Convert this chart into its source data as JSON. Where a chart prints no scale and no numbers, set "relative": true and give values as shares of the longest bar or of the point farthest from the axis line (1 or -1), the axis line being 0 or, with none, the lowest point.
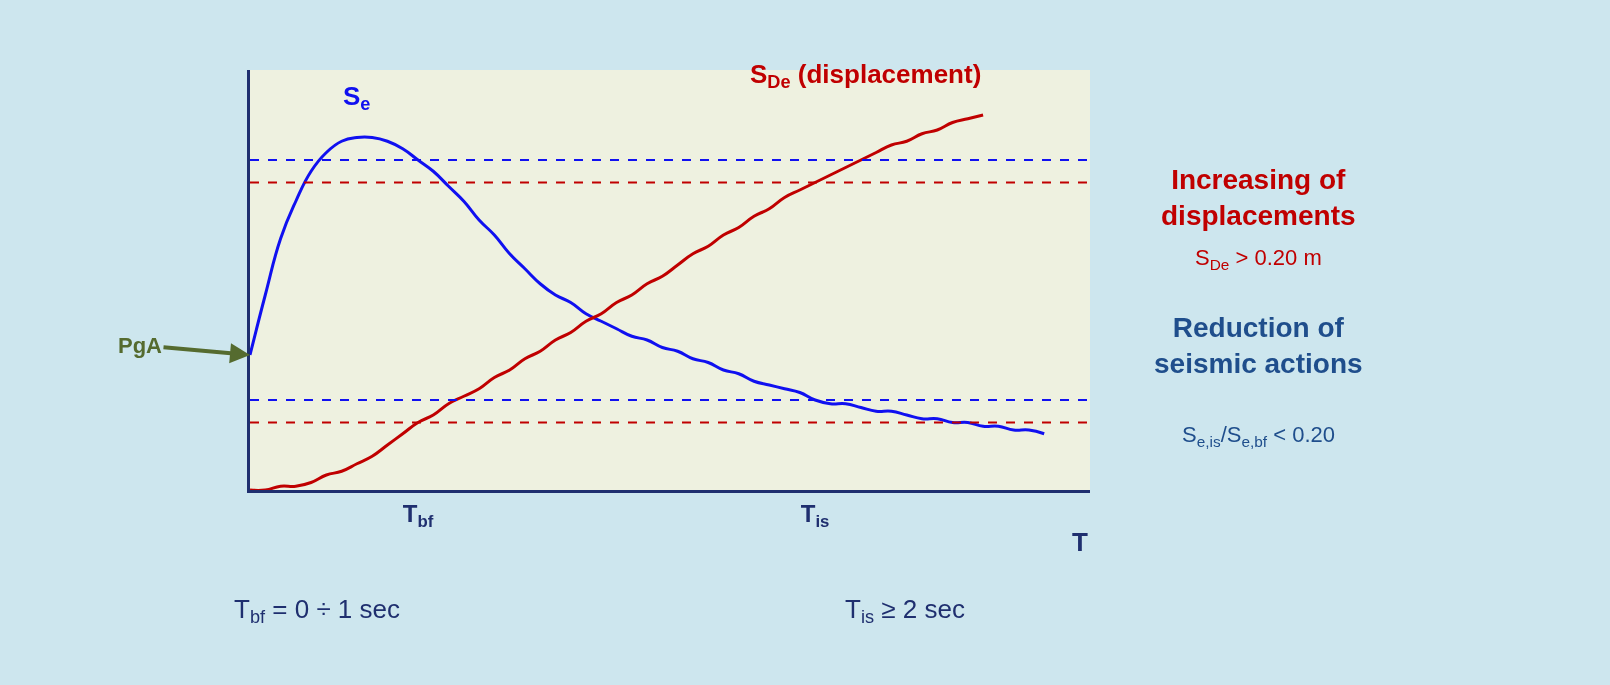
{
  "chart_data": {
    "type": "line",
    "relative": true,
    "xlabel": "T",
    "legend": false,
    "grid": false,
    "categories": [
      null,
      null,
      null,
      null,
      null,
      null,
      null,
      null,
      null,
      null,
      null,
      "T$_{bf}$",
      null,
      null,
      null,
      null,
      null,
      null,
      null,
      null,
      null,
      null,
      null,
      null,
      null,
      null,
      null,
      null,
      null,
      null,
      null,
      null,
      null,
      null,
      null,
      null,
      null,
      "T$_{is}$",
      null,
      null,
      null,
      null,
      null,
      null,
      null,
      null,
      null,
      null,
      null,
      null,
      null,
      null,
      null,
      null,
      null,
      null
    ],
    "series": [
      {
        "name": "S$_{e}$",
        "color": "#1010f0",
        "values": [
          0.36,
          0.52,
          0.67,
          0.77,
          0.85,
          0.9,
          0.93,
          0.94,
          0.94,
          0.93,
          0.91,
          0.88,
          0.85,
          0.81,
          0.77,
          0.72,
          0.68,
          0.63,
          0.59,
          0.55,
          0.52,
          0.5,
          0.47,
          0.45,
          0.43,
          0.41,
          0.4,
          0.38,
          0.37,
          0.35,
          0.34,
          0.32,
          0.31,
          0.29,
          0.28,
          0.27,
          0.26,
          0.24,
          0.23,
          0.23,
          0.22,
          0.21,
          0.21,
          0.2,
          0.19,
          0.19,
          0.18,
          0.18,
          0.17,
          0.17,
          0.16,
          0.16,
          0.15,
          null,
          null,
          null
        ]
      },
      {
        "name": "S$_{De}$ (displacement)",
        "color": "#c00000",
        "values": [
          0,
          0.0,
          0.01,
          0.01,
          0.02,
          0.04,
          0.05,
          0.07,
          0.09,
          0.12,
          0.15,
          0.18,
          0.2,
          0.23,
          0.25,
          0.27,
          0.3,
          0.32,
          0.35,
          0.37,
          0.4,
          0.42,
          0.45,
          0.47,
          0.5,
          0.52,
          0.55,
          0.57,
          0.6,
          0.63,
          0.65,
          0.68,
          0.7,
          0.73,
          0.75,
          0.78,
          0.8,
          0.82,
          0.84,
          0.86,
          0.88,
          0.9,
          0.92,
          0.93,
          0.95,
          0.96,
          0.98,
          0.99,
          1.0,
          null,
          null,
          null,
          null,
          null,
          null,
          null
        ]
      }
    ],
    "ref_lines": [
      {
        "axis": "y",
        "value": 0.88,
        "color": "#1010f0",
        "line_style": "dashed"
      },
      {
        "axis": "y",
        "value": 0.24,
        "color": "#1010f0",
        "line_style": "dashed"
      },
      {
        "axis": "y",
        "value": 0.82,
        "color": "#c00000",
        "line_style": "dashed"
      },
      {
        "axis": "y",
        "value": 0.18,
        "color": "#c00000",
        "line_style": "dashed"
      }
    ],
    "annotations": [
      "PgA",
      "Increasing of displacements",
      "S$_{De}$ > 0.20 m",
      "Reduction of seismic actions",
      "S$_{e,is}$/S$_{e,bf}$ < 0.20",
      "T$_{bf}$ = 0 ÷ 1 sec",
      "T$_{is}$ ≥ 2 sec"
    ]
  }
}
